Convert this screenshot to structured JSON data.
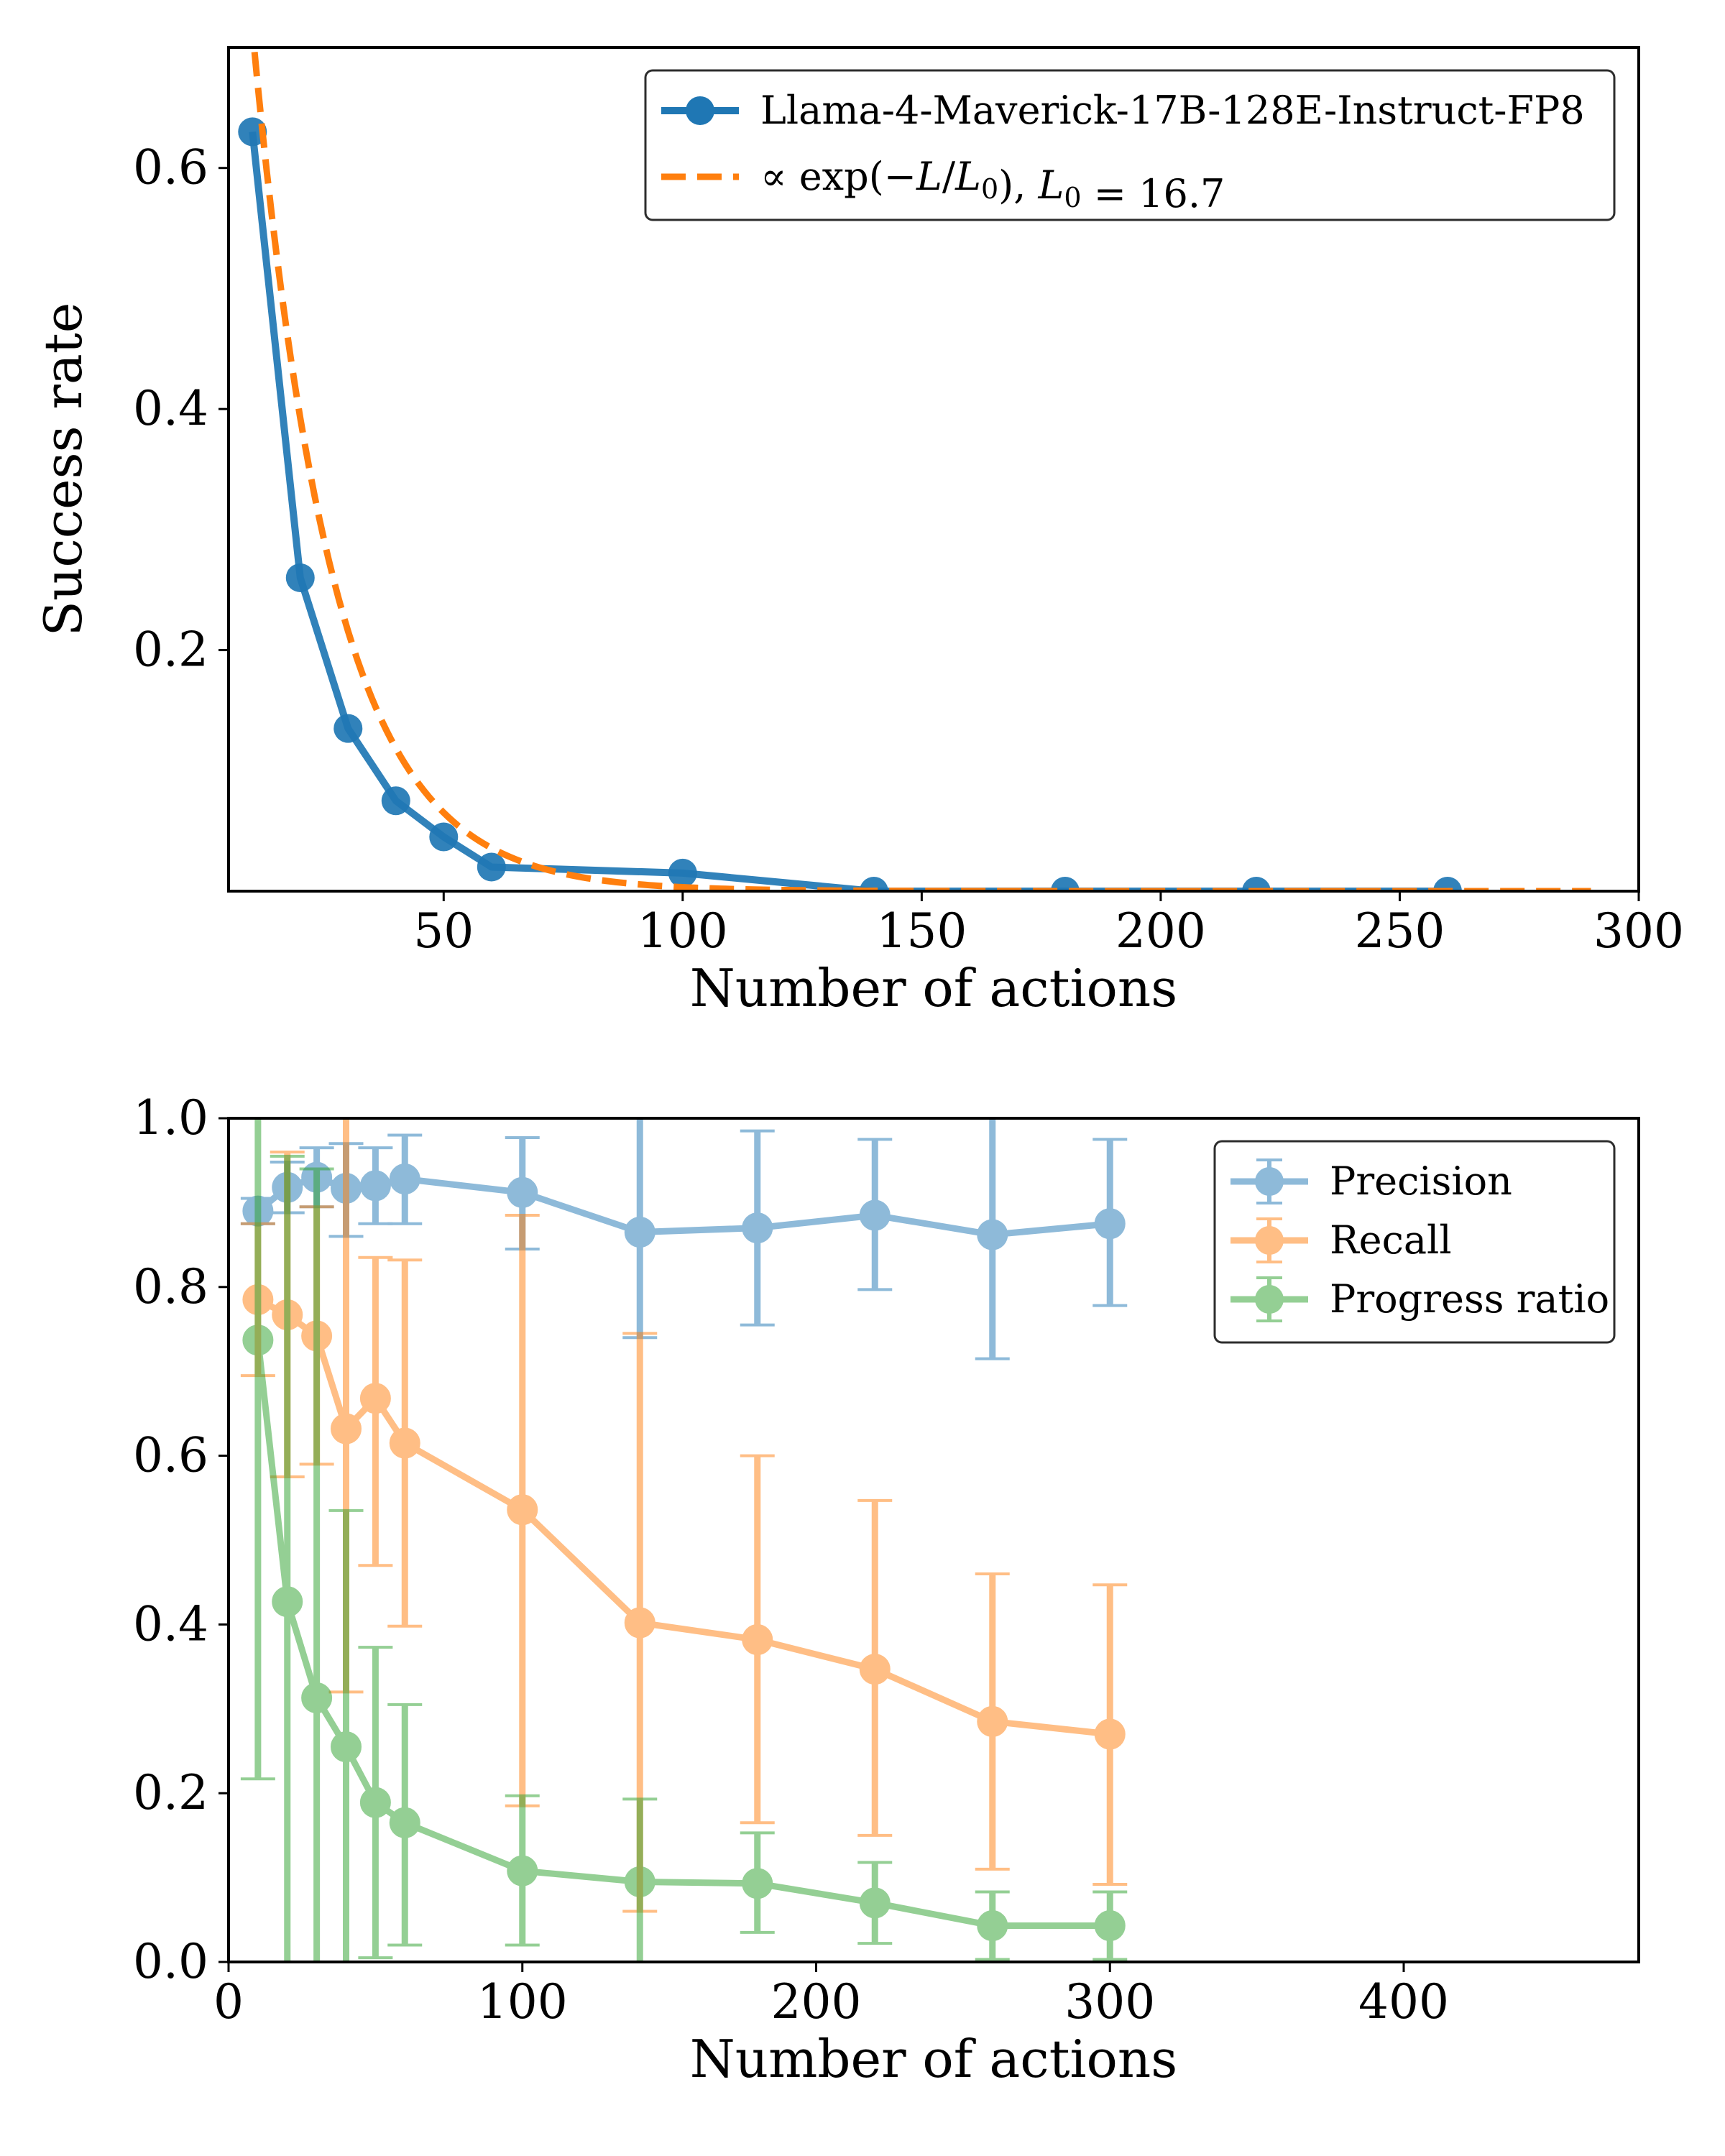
{
  "chart_data": [
    {
      "type": "line",
      "xlabel": "Number of actions",
      "ylabel": "Success rate",
      "xlim": [
        5,
        300
      ],
      "ylim": [
        0.0,
        0.7
      ],
      "xticks": [
        50,
        100,
        150,
        200,
        250,
        300
      ],
      "xtick_labels": [
        "50",
        "100",
        "150",
        "200",
        "250",
        "300"
      ],
      "yticks": [
        0.2,
        0.4,
        0.6
      ],
      "ytick_labels": [
        "0.2",
        "0.4",
        "0.6"
      ],
      "legend_position": "top-right",
      "series": [
        {
          "name": "Llama-4-Maverick-17B-128E-Instruct-FP8",
          "color": "#1f77b4",
          "style": "solid-markers",
          "x": [
            10,
            20,
            30,
            40,
            50,
            60,
            100,
            140,
            180,
            220,
            260
          ],
          "y": [
            0.63,
            0.26,
            0.135,
            0.075,
            0.045,
            0.02,
            0.015,
            0.0,
            0.0,
            0.0,
            0.0
          ]
        },
        {
          "name": "∝ exp(−L/L₀),  L₀ = 16.7",
          "legend_parts": [
            "∝ exp(−",
            "L",
            "/",
            "L",
            "0",
            "),  ",
            "L",
            "0",
            " = 16.7"
          ],
          "color": "#ff7f0e",
          "style": "dashed",
          "function": "exponential",
          "L0": 16.7,
          "amplitude": 1.3,
          "x_range": [
            5,
            290
          ]
        }
      ]
    },
    {
      "type": "line",
      "xlabel": "Number of actions",
      "ylabel": "",
      "xlim": [
        0,
        480
      ],
      "ylim": [
        0.0,
        1.0
      ],
      "xticks": [
        0,
        100,
        200,
        300,
        400
      ],
      "xtick_labels": [
        "0",
        "100",
        "200",
        "300",
        "400"
      ],
      "yticks": [
        0.0,
        0.2,
        0.4,
        0.6,
        0.8,
        1.0
      ],
      "ytick_labels": [
        "0.0",
        "0.2",
        "0.4",
        "0.6",
        "0.8",
        "1.0"
      ],
      "legend_position": "top-right",
      "x": [
        10,
        20,
        30,
        40,
        50,
        60,
        100,
        140,
        180,
        220,
        260,
        300
      ],
      "series": [
        {
          "name": "Precision",
          "color": "#1f77b4",
          "values": [
            0.89,
            0.918,
            0.93,
            0.917,
            0.92,
            0.928,
            0.912,
            0.865,
            0.87,
            0.885,
            0.862,
            0.875
          ],
          "err_low": [
            0.875,
            0.888,
            0.895,
            0.86,
            0.875,
            0.875,
            0.845,
            0.74,
            0.755,
            0.797,
            0.715,
            0.778
          ],
          "err_high": [
            0.905,
            0.948,
            0.965,
            0.97,
            0.965,
            0.98,
            0.977,
            1.0,
            0.985,
            0.975,
            1.0,
            0.975
          ]
        },
        {
          "name": "Recall",
          "color": "#ff7f0e",
          "values": [
            0.785,
            0.767,
            0.742,
            0.632,
            0.668,
            0.615,
            0.536,
            0.402,
            0.382,
            0.347,
            0.285,
            0.27
          ],
          "err_low": [
            0.695,
            0.575,
            0.59,
            0.32,
            0.47,
            0.398,
            0.185,
            0.06,
            0.165,
            0.15,
            0.11,
            0.092
          ],
          "err_high": [
            0.875,
            0.96,
            0.895,
            1.0,
            0.835,
            0.832,
            0.885,
            0.745,
            0.6,
            0.547,
            0.46,
            0.447
          ]
        },
        {
          "name": "Progress ratio",
          "color": "#2ca02c",
          "values": [
            0.737,
            0.427,
            0.313,
            0.255,
            0.189,
            0.165,
            0.108,
            0.095,
            0.093,
            0.07,
            0.043,
            0.043
          ],
          "err_low": [
            0.217,
            0.0,
            0.0,
            0.0,
            0.005,
            0.02,
            0.02,
            0.0,
            0.035,
            0.022,
            0.003,
            0.003
          ],
          "err_high": [
            1.0,
            0.955,
            0.94,
            0.535,
            0.373,
            0.305,
            0.197,
            0.193,
            0.153,
            0.118,
            0.083,
            0.083
          ]
        }
      ]
    }
  ]
}
